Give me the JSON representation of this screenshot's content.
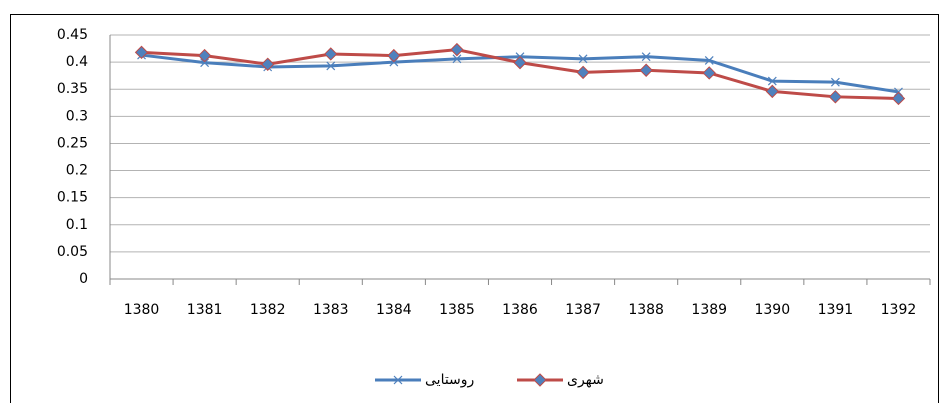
{
  "chart_data": {
    "type": "line",
    "categories": [
      "1380",
      "1381",
      "1382",
      "1383",
      "1384",
      "1385",
      "1386",
      "1387",
      "1388",
      "1389",
      "1390",
      "1391",
      "1392"
    ],
    "series": [
      {
        "name": "روستایی",
        "color": "#4a7ebb",
        "marker": "x",
        "values": [
          0.413,
          0.399,
          0.391,
          0.393,
          0.4,
          0.406,
          0.41,
          0.406,
          0.41,
          0.403,
          0.365,
          0.363,
          0.345
        ]
      },
      {
        "name": "شهری",
        "color": "#be4b48",
        "marker": "diamond",
        "values": [
          0.418,
          0.412,
          0.396,
          0.415,
          0.412,
          0.423,
          0.399,
          0.381,
          0.385,
          0.38,
          0.346,
          0.336,
          0.333
        ]
      }
    ],
    "ylim": [
      0,
      0.45
    ],
    "yticks": [
      0,
      0.05,
      0.1,
      0.15,
      0.2,
      0.25,
      0.3,
      0.35,
      0.4,
      0.45
    ],
    "grid": true,
    "legend": "bottom"
  }
}
